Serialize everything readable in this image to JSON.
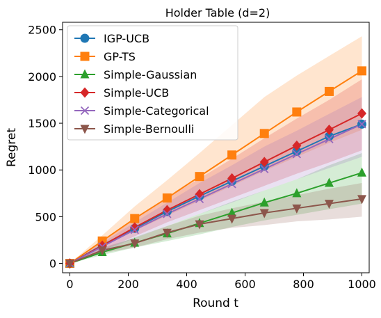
{
  "chart_data": {
    "type": "line",
    "title": "Holder Table (d=2)",
    "xlabel": "Round t",
    "ylabel": "Regret",
    "xlim": [
      -25,
      1025
    ],
    "ylim": [
      -100,
      2580
    ],
    "xticks": [
      0,
      200,
      400,
      600,
      800,
      1000
    ],
    "yticks": [
      0,
      500,
      1000,
      1500,
      2000,
      2500
    ],
    "x": [
      0,
      111,
      222,
      333,
      444,
      555,
      666,
      777,
      888,
      1000
    ],
    "legend_position": "upper left",
    "series": [
      {
        "name": "IGP-UCB",
        "color": "#1f77b4",
        "marker": "circle",
        "values": [
          0,
          195,
          375,
          555,
          720,
          880,
          1040,
          1200,
          1360,
          1490
        ],
        "band": null
      },
      {
        "name": "GP-TS",
        "color": "#ff7f0e",
        "marker": "square",
        "values": [
          0,
          240,
          480,
          700,
          930,
          1160,
          1390,
          1620,
          1840,
          2060
        ],
        "band": [
          [
            0,
            0
          ],
          [
            180,
            300
          ],
          [
            350,
            610
          ],
          [
            510,
            890
          ],
          [
            670,
            1180
          ],
          [
            830,
            1480
          ],
          [
            990,
            1780
          ],
          [
            1140,
            2010
          ],
          [
            1290,
            2220
          ],
          [
            1430,
            2430
          ]
        ]
      },
      {
        "name": "Simple-Gaussian",
        "color": "#2ca02c",
        "marker": "triangle-up",
        "values": [
          0,
          120,
          220,
          320,
          430,
          540,
          650,
          750,
          860,
          970
        ],
        "band": [
          [
            0,
            0
          ],
          [
            90,
            150
          ],
          [
            170,
            280
          ],
          [
            240,
            400
          ],
          [
            310,
            530
          ],
          [
            390,
            660
          ],
          [
            460,
            780
          ],
          [
            520,
            900
          ],
          [
            580,
            1050
          ],
          [
            640,
            1180
          ]
        ]
      },
      {
        "name": "Simple-UCB",
        "color": "#d62728",
        "marker": "diamond",
        "values": [
          0,
          190,
          385,
          570,
          740,
          910,
          1085,
          1260,
          1430,
          1605
        ],
        "band": [
          [
            0,
            0
          ],
          [
            140,
            235
          ],
          [
            290,
            480
          ],
          [
            440,
            700
          ],
          [
            570,
            910
          ],
          [
            700,
            1120
          ],
          [
            830,
            1340
          ],
          [
            960,
            1550
          ],
          [
            1080,
            1750
          ],
          [
            1210,
            1970
          ]
        ]
      },
      {
        "name": "Simple-Categorical",
        "color": "#9467bd",
        "marker": "x",
        "values": [
          0,
          180,
          360,
          530,
          690,
          850,
          1010,
          1170,
          1330,
          1490
        ],
        "band": [
          [
            0,
            0
          ],
          [
            130,
            220
          ],
          [
            270,
            440
          ],
          [
            400,
            650
          ],
          [
            530,
            860
          ],
          [
            650,
            1050
          ],
          [
            780,
            1250
          ],
          [
            900,
            1420
          ],
          [
            1020,
            1600
          ],
          [
            1140,
            1780
          ]
        ]
      },
      {
        "name": "Simple-Bernoulli",
        "color": "#8c564b",
        "marker": "triangle-down",
        "values": [
          0,
          140,
          215,
          330,
          420,
          480,
          540,
          590,
          640,
          690
        ],
        "band": [
          [
            0,
            0
          ],
          [
            110,
            170
          ],
          [
            170,
            270
          ],
          [
            260,
            400
          ],
          [
            330,
            510
          ],
          [
            380,
            590
          ],
          [
            410,
            660
          ],
          [
            450,
            730
          ],
          [
            470,
            800
          ],
          [
            500,
            860
          ]
        ]
      }
    ]
  }
}
